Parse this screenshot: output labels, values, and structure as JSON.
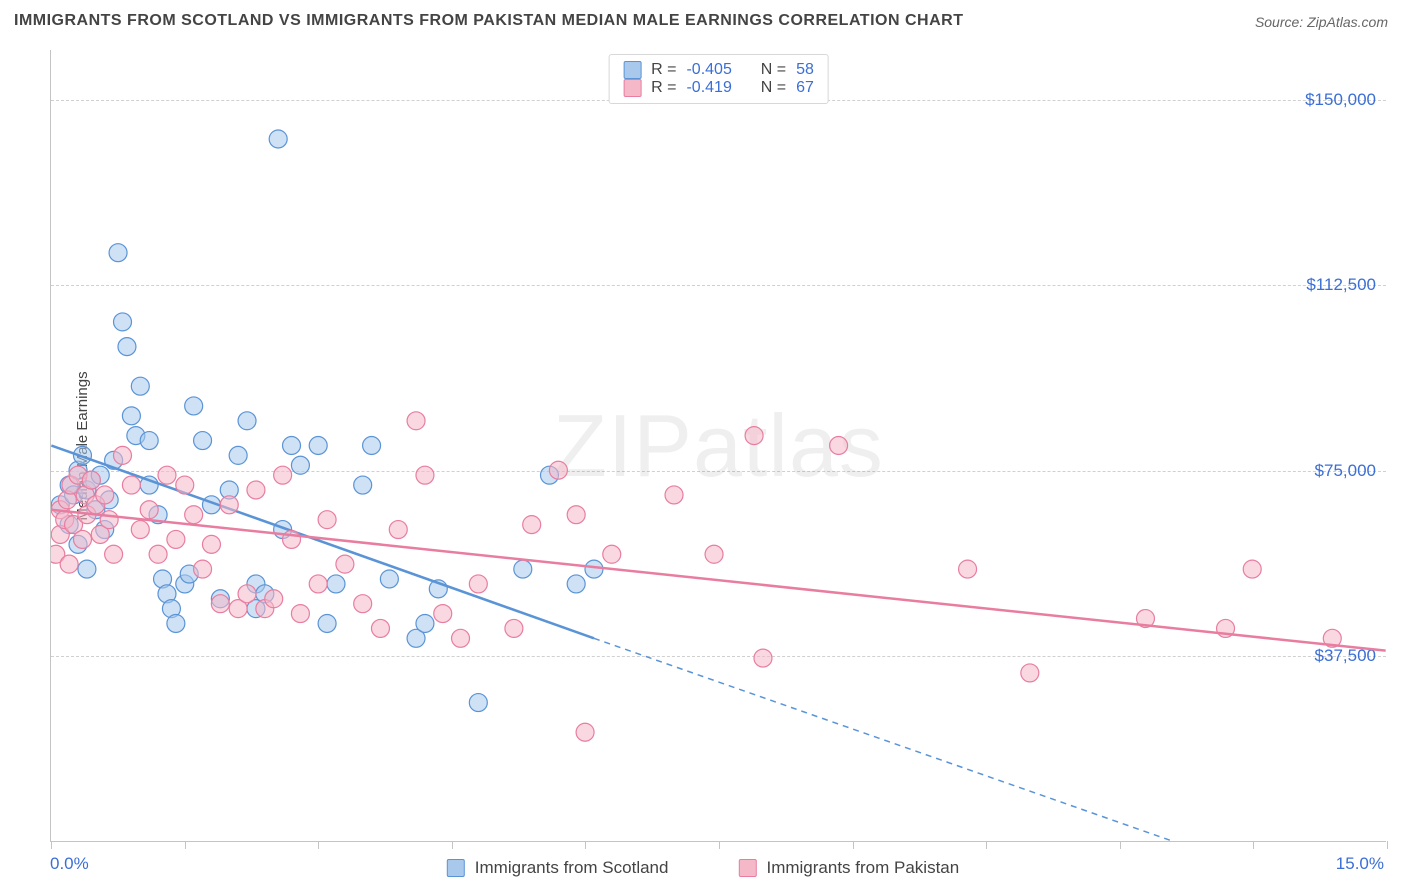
{
  "title": "IMMIGRANTS FROM SCOTLAND VS IMMIGRANTS FROM PAKISTAN MEDIAN MALE EARNINGS CORRELATION CHART",
  "source": "Source: ZipAtlas.com",
  "watermark": "ZIPatlas",
  "ylabel": "Median Male Earnings",
  "chart": {
    "type": "scatter",
    "background_color": "#ffffff",
    "grid_color": "#d0d0d0",
    "axis_color": "#c4c4c4",
    "title_fontsize": 16,
    "label_fontsize": 15,
    "tick_label_color": "#3b6fd6",
    "tick_fontsize": 17,
    "xlim": [
      0,
      15
    ],
    "ylim": [
      0,
      160000
    ],
    "x_ticks": [
      0,
      1.5,
      3,
      4.5,
      6,
      7.5,
      9,
      10.5,
      12,
      13.5,
      15
    ],
    "x_tick_labels": {
      "0": "0.0%",
      "15": "15.0%"
    },
    "y_gridlines": [
      37500,
      75000,
      112500,
      150000
    ],
    "y_tick_labels": [
      "$37,500",
      "$75,000",
      "$112,500",
      "$150,000"
    ],
    "marker_radius": 9,
    "marker_opacity": 0.55,
    "marker_stroke_width": 1.2,
    "series": [
      {
        "name": "Immigrants from Scotland",
        "color_fill": "#a8c8ec",
        "color_stroke": "#5a94d6",
        "r_value": "-0.405",
        "n_value": "58",
        "trend": {
          "solid": [
            [
              0,
              80000
            ],
            [
              6.1,
              41000
            ]
          ],
          "dashed": [
            [
              6.1,
              41000
            ],
            [
              12.6,
              0
            ]
          ],
          "width": 2.5
        },
        "points": [
          [
            0.1,
            68000
          ],
          [
            0.2,
            72000
          ],
          [
            0.2,
            64000
          ],
          [
            0.25,
            70000
          ],
          [
            0.3,
            75000
          ],
          [
            0.3,
            60000
          ],
          [
            0.35,
            78000
          ],
          [
            0.4,
            71000
          ],
          [
            0.4,
            55000
          ],
          [
            0.45,
            73000
          ],
          [
            0.5,
            67000
          ],
          [
            0.55,
            74000
          ],
          [
            0.6,
            63000
          ],
          [
            0.65,
            69000
          ],
          [
            0.7,
            77000
          ],
          [
            0.75,
            119000
          ],
          [
            0.8,
            105000
          ],
          [
            0.85,
            100000
          ],
          [
            0.9,
            86000
          ],
          [
            0.95,
            82000
          ],
          [
            1.0,
            92000
          ],
          [
            1.1,
            81000
          ],
          [
            1.1,
            72000
          ],
          [
            1.2,
            66000
          ],
          [
            1.25,
            53000
          ],
          [
            1.3,
            50000
          ],
          [
            1.35,
            47000
          ],
          [
            1.4,
            44000
          ],
          [
            1.5,
            52000
          ],
          [
            1.55,
            54000
          ],
          [
            1.6,
            88000
          ],
          [
            1.7,
            81000
          ],
          [
            1.8,
            68000
          ],
          [
            1.9,
            49000
          ],
          [
            2.0,
            71000
          ],
          [
            2.1,
            78000
          ],
          [
            2.2,
            85000
          ],
          [
            2.3,
            52000
          ],
          [
            2.3,
            47000
          ],
          [
            2.4,
            50000
          ],
          [
            2.55,
            142000
          ],
          [
            2.6,
            63000
          ],
          [
            2.7,
            80000
          ],
          [
            2.8,
            76000
          ],
          [
            3.0,
            80000
          ],
          [
            3.1,
            44000
          ],
          [
            3.2,
            52000
          ],
          [
            3.5,
            72000
          ],
          [
            3.6,
            80000
          ],
          [
            3.8,
            53000
          ],
          [
            4.1,
            41000
          ],
          [
            4.2,
            44000
          ],
          [
            4.35,
            51000
          ],
          [
            4.8,
            28000
          ],
          [
            5.3,
            55000
          ],
          [
            5.6,
            74000
          ],
          [
            5.9,
            52000
          ],
          [
            6.1,
            55000
          ]
        ]
      },
      {
        "name": "Immigrants from Pakistan",
        "color_fill": "#f5b8c8",
        "color_stroke": "#e87da0",
        "r_value": "-0.419",
        "n_value": "67",
        "trend": {
          "solid": [
            [
              0,
              67000
            ],
            [
              15,
              38500
            ]
          ],
          "dashed": null,
          "width": 2.5
        },
        "points": [
          [
            0.05,
            58000
          ],
          [
            0.1,
            62000
          ],
          [
            0.1,
            67000
          ],
          [
            0.15,
            65000
          ],
          [
            0.18,
            69000
          ],
          [
            0.2,
            56000
          ],
          [
            0.22,
            72000
          ],
          [
            0.25,
            64000
          ],
          [
            0.3,
            74000
          ],
          [
            0.35,
            61000
          ],
          [
            0.38,
            70000
          ],
          [
            0.4,
            66000
          ],
          [
            0.45,
            73000
          ],
          [
            0.5,
            68000
          ],
          [
            0.55,
            62000
          ],
          [
            0.6,
            70000
          ],
          [
            0.65,
            65000
          ],
          [
            0.7,
            58000
          ],
          [
            0.8,
            78000
          ],
          [
            0.9,
            72000
          ],
          [
            1.0,
            63000
          ],
          [
            1.1,
            67000
          ],
          [
            1.2,
            58000
          ],
          [
            1.3,
            74000
          ],
          [
            1.4,
            61000
          ],
          [
            1.5,
            72000
          ],
          [
            1.6,
            66000
          ],
          [
            1.7,
            55000
          ],
          [
            1.8,
            60000
          ],
          [
            1.9,
            48000
          ],
          [
            2.0,
            68000
          ],
          [
            2.1,
            47000
          ],
          [
            2.2,
            50000
          ],
          [
            2.3,
            71000
          ],
          [
            2.4,
            47000
          ],
          [
            2.5,
            49000
          ],
          [
            2.6,
            74000
          ],
          [
            2.7,
            61000
          ],
          [
            2.8,
            46000
          ],
          [
            3.0,
            52000
          ],
          [
            3.1,
            65000
          ],
          [
            3.3,
            56000
          ],
          [
            3.5,
            48000
          ],
          [
            3.7,
            43000
          ],
          [
            3.9,
            63000
          ],
          [
            4.1,
            85000
          ],
          [
            4.2,
            74000
          ],
          [
            4.4,
            46000
          ],
          [
            4.6,
            41000
          ],
          [
            4.8,
            52000
          ],
          [
            5.2,
            43000
          ],
          [
            5.4,
            64000
          ],
          [
            5.7,
            75000
          ],
          [
            5.9,
            66000
          ],
          [
            6.0,
            22000
          ],
          [
            6.3,
            58000
          ],
          [
            7.0,
            70000
          ],
          [
            7.45,
            58000
          ],
          [
            7.9,
            82000
          ],
          [
            8.0,
            37000
          ],
          [
            8.85,
            80000
          ],
          [
            10.3,
            55000
          ],
          [
            11.0,
            34000
          ],
          [
            12.3,
            45000
          ],
          [
            13.2,
            43000
          ],
          [
            13.5,
            55000
          ],
          [
            14.4,
            41000
          ]
        ]
      }
    ]
  },
  "legend_top": {
    "r_label": "R =",
    "n_label": "N ="
  },
  "legend_bottom": {
    "items": [
      "Immigrants from Scotland",
      "Immigrants from Pakistan"
    ]
  }
}
